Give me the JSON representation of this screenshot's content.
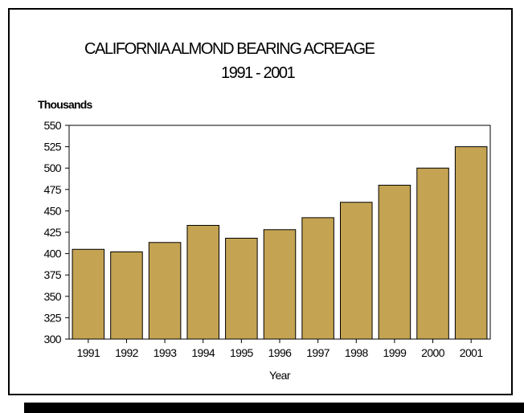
{
  "chart_data": {
    "type": "bar",
    "title": "CALIFORNIA ALMOND BEARING ACREAGE",
    "subtitle": "1991 - 2001",
    "ylabel": "Thousands",
    "xlabel": "Year",
    "categories": [
      "1991",
      "1992",
      "1993",
      "1994",
      "1995",
      "1996",
      "1997",
      "1998",
      "1999",
      "2000",
      "2001"
    ],
    "values": [
      405,
      402,
      413,
      433,
      418,
      428,
      442,
      460,
      480,
      500,
      525
    ],
    "ylim": [
      300,
      550
    ],
    "yticks": [
      "300",
      "325",
      "350",
      "375",
      "400",
      "425",
      "450",
      "475",
      "500",
      "525",
      "550"
    ],
    "bar_color": "#c4a352",
    "grid": false
  }
}
